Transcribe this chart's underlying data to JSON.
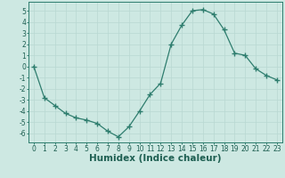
{
  "x": [
    0,
    1,
    2,
    3,
    4,
    5,
    6,
    7,
    8,
    9,
    10,
    11,
    12,
    13,
    14,
    15,
    16,
    17,
    18,
    19,
    20,
    21,
    22,
    23
  ],
  "y": [
    0.0,
    -2.8,
    -3.5,
    -4.2,
    -4.6,
    -4.8,
    -5.1,
    -5.8,
    -6.3,
    -5.4,
    -4.0,
    -2.5,
    -1.5,
    2.0,
    3.7,
    5.0,
    5.1,
    4.7,
    3.3,
    1.2,
    1.0,
    -0.2,
    -0.8,
    -1.2
  ],
  "line_color": "#2e7d6e",
  "marker": "+",
  "marker_size": 4,
  "bg_color": "#cde8e2",
  "grid_color": "#b8d8d2",
  "xlabel": "Humidex (Indice chaleur)",
  "xlim": [
    -0.5,
    23.5
  ],
  "ylim": [
    -6.8,
    5.8
  ],
  "yticks": [
    -6,
    -5,
    -4,
    -3,
    -2,
    -1,
    0,
    1,
    2,
    3,
    4,
    5
  ],
  "xticks": [
    0,
    1,
    2,
    3,
    4,
    5,
    6,
    7,
    8,
    9,
    10,
    11,
    12,
    13,
    14,
    15,
    16,
    17,
    18,
    19,
    20,
    21,
    22,
    23
  ],
  "tick_fontsize": 5.5,
  "label_fontsize": 7.5,
  "axis_color": "#1e5f52",
  "spine_color": "#2e7d6e"
}
